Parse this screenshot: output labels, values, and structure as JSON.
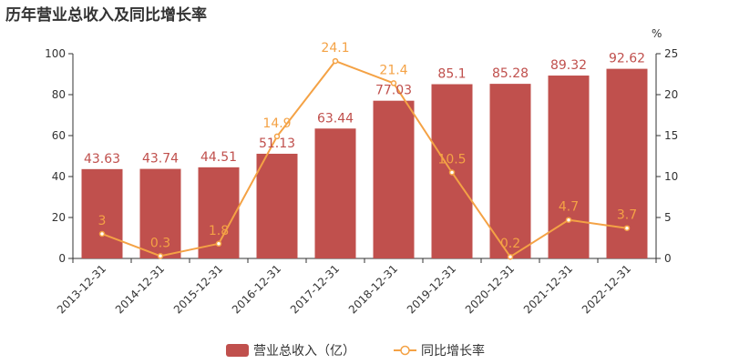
{
  "title": "历年营业总收入及同比增长率",
  "colors": {
    "bar": "#c0504d",
    "line": "#f4a245",
    "axis": "#333333"
  },
  "chart_data": {
    "type": "bar",
    "title": "历年营业总收入及同比增长率",
    "categories": [
      "2013-12-31",
      "2014-12-31",
      "2015-12-31",
      "2016-12-31",
      "2017-12-31",
      "2018-12-31",
      "2019-12-31",
      "2020-12-31",
      "2021-12-31",
      "2022-12-31"
    ],
    "series": [
      {
        "name": "营业总收入（亿）",
        "type": "bar",
        "axis": "left",
        "values": [
          43.63,
          43.74,
          44.51,
          51.13,
          63.44,
          77.03,
          85.1,
          85.28,
          89.32,
          92.62
        ]
      },
      {
        "name": "同比增长率",
        "type": "line",
        "axis": "right",
        "values": [
          3,
          0.3,
          1.8,
          14.9,
          24.1,
          21.4,
          10.5,
          0.2,
          4.7,
          3.7
        ]
      }
    ],
    "y_left": {
      "min": 0,
      "max": 100,
      "ticks": [
        0,
        20,
        40,
        60,
        80,
        100
      ]
    },
    "y_right": {
      "label": "%",
      "min": 0,
      "max": 25,
      "ticks": [
        0,
        5,
        10,
        15,
        20,
        25
      ]
    },
    "grid": false,
    "legend_position": "bottom-center"
  }
}
